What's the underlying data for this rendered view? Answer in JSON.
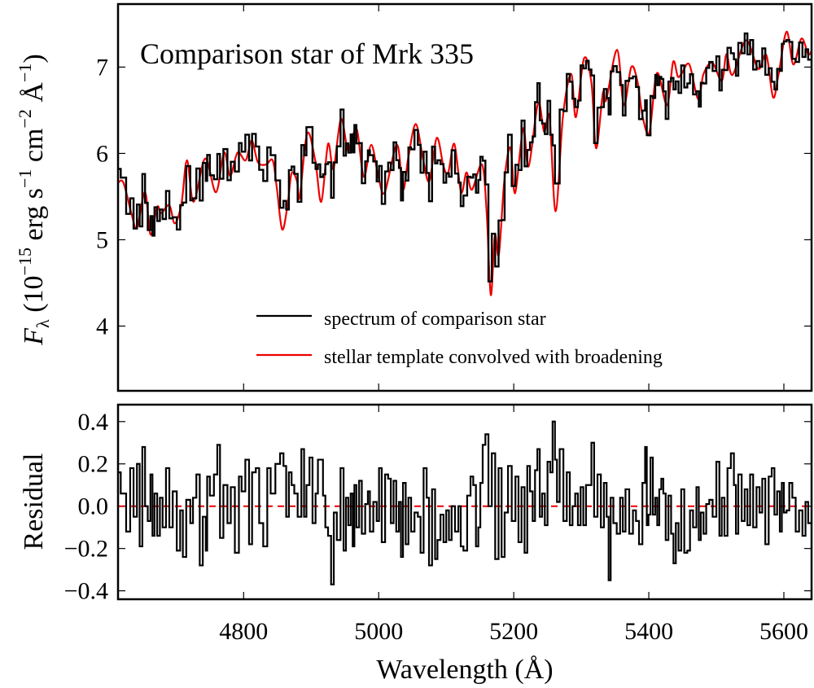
{
  "chart_data": [
    {
      "type": "line",
      "panel": "top",
      "title": "Comparison star of Mrk 335",
      "xlabel": "",
      "ylabel_parts": [
        "F",
        "λ",
        " (10",
        "−15",
        " erg s",
        "−1",
        " cm",
        "−2",
        " Å",
        "−1",
        ")"
      ],
      "xlim": [
        4614,
        5641
      ],
      "ylim": [
        3.25,
        7.73
      ],
      "x_ticks": [
        4800,
        5000,
        5200,
        5400,
        5600
      ],
      "y_ticks": [
        4,
        5,
        6,
        7
      ],
      "y_tick_labels": [
        "4",
        "5",
        "6",
        "7"
      ],
      "grid": false,
      "legend_position": "bottom-right",
      "series": [
        {
          "name": "spectrum of comparison star",
          "color": "#000000",
          "style": "step"
        },
        {
          "name": "stellar template convolved with broadening",
          "color": "#ee0000",
          "style": "smooth",
          "x": [
            4614,
            4622,
            4634,
            4642,
            4654,
            4662,
            4672,
            4678,
            4690,
            4698,
            4708,
            4716,
            4726,
            4743,
            4759,
            4771,
            4780,
            4791,
            4803,
            4812,
            4821,
            4833,
            4843,
            4849,
            4857,
            4865,
            4871,
            4879,
            4883,
            4894,
            4906,
            4915,
            4925,
            4933,
            4944,
            4954,
            4960,
            4968,
            4978,
            4989,
            5000,
            5009,
            5027,
            5036,
            5044,
            5055,
            5066,
            5075,
            5086,
            5096,
            5103,
            5112,
            5122,
            5130,
            5138,
            5153,
            5160,
            5166,
            5172,
            5178,
            5186,
            5195,
            5202,
            5214,
            5222,
            5236,
            5245,
            5253,
            5262,
            5273,
            5285,
            5292,
            5304,
            5315,
            5322,
            5332,
            5337,
            5353,
            5363,
            5374,
            5383,
            5391,
            5401,
            5412,
            5427,
            5436,
            5443,
            5449,
            5460,
            5473,
            5481,
            5494,
            5508,
            5515,
            5524,
            5544,
            5562,
            5574,
            5584,
            5592,
            5604,
            5614,
            5626,
            5636,
            5641
          ],
          "y": [
            5.66,
            5.66,
            5.3,
            5.14,
            5.55,
            5.06,
            5.38,
            5.31,
            5.4,
            5.19,
            5.42,
            5.92,
            5.44,
            5.94,
            5.55,
            6.01,
            5.74,
            6.01,
            5.92,
            6.15,
            5.9,
            5.87,
            5.92,
            5.61,
            5.12,
            5.4,
            5.77,
            5.68,
            5.49,
            6.23,
            5.92,
            5.44,
            6.11,
            5.82,
            6.4,
            6.04,
            6.16,
            6.27,
            5.73,
            6.1,
            5.71,
            5.55,
            6.1,
            5.58,
            5.96,
            6.34,
            5.92,
            5.68,
            6.18,
            5.85,
            5.78,
            6.11,
            5.55,
            5.78,
            5.58,
            5.87,
            5.3,
            4.36,
            5.05,
            4.83,
            5.68,
            6.07,
            5.54,
            6.29,
            5.85,
            6.58,
            6.25,
            6.42,
            5.33,
            6.44,
            6.92,
            6.42,
            7.1,
            6.82,
            6.06,
            6.7,
            6.62,
            7.2,
            6.56,
            7.0,
            6.84,
            6.42,
            6.25,
            6.93,
            6.56,
            7.06,
            6.89,
            6.93,
            7.03,
            6.63,
            6.92,
            7.05,
            6.84,
            7.15,
            6.91,
            7.31,
            6.98,
            7.14,
            6.65,
            6.91,
            7.41,
            7.03,
            7.33,
            7.15,
            7.19
          ]
        }
      ]
    },
    {
      "type": "line",
      "panel": "bottom",
      "xlabel": "Wavelength (Å)",
      "ylabel": "Residual",
      "xlim": [
        4614,
        5641
      ],
      "ylim": [
        -0.44,
        0.48
      ],
      "x_ticks": [
        4800,
        5000,
        5200,
        5400,
        5600
      ],
      "x_tick_labels": [
        "4800",
        "5000",
        "5200",
        "5400",
        "5600"
      ],
      "y_ticks": [
        -0.4,
        -0.2,
        0.0,
        0.2,
        0.4
      ],
      "y_tick_labels": [
        "−0.4",
        "−0.2",
        "0.0",
        "0.2",
        "0.4"
      ],
      "grid": false,
      "reference_line": {
        "y": 0.0,
        "color": "#ee0000",
        "style": "dashed"
      },
      "series": [
        {
          "color": "#000000",
          "style": "step",
          "x": [
            4614,
            4622,
            4630,
            4634,
            4640,
            4644,
            4648,
            4652,
            4656,
            4660,
            4664,
            4666,
            4670,
            4674,
            4678,
            4682,
            4688,
            4692,
            4698,
            4704,
            4708,
            4712,
            4718,
            4724,
            4726,
            4734,
            4736,
            4743,
            4745,
            4747,
            4753,
            4759,
            4763,
            4767,
            4773,
            4779,
            4783,
            4791,
            4795,
            4799,
            4806,
            4810,
            4815,
            4821,
            4825,
            4833,
            4837,
            4843,
            4851,
            4857,
            4861,
            4865,
            4869,
            4873,
            4877,
            4883,
            4888,
            4891,
            4895,
            4900,
            4904,
            4909,
            4911,
            4916,
            4919,
            4923,
            4927,
            4932,
            4935,
            4941,
            4946,
            4950,
            4953,
            4957,
            4960,
            4963,
            4965,
            4969,
            4973,
            4977,
            4983,
            4985,
            4989,
            4995,
            4999,
            5002,
            5007,
            5012,
            5016,
            5020,
            5024,
            5028,
            5032,
            5034,
            5038,
            5042,
            5046,
            5050,
            5056,
            5060,
            5064,
            5069,
            5073,
            5076,
            5082,
            5085,
            5089,
            5094,
            5098,
            5102,
            5106,
            5110,
            5116,
            5120,
            5123,
            5128,
            5134,
            5138,
            5142,
            5146,
            5149,
            5152,
            5156,
            5160,
            5165,
            5170,
            5175,
            5180,
            5184,
            5189,
            5194,
            5200,
            5205,
            5209,
            5214,
            5218,
            5222,
            5226,
            5230,
            5233,
            5237,
            5240,
            5244,
            5248,
            5252,
            5256,
            5259,
            5263,
            5265,
            5271,
            5276,
            5281,
            5285,
            5289,
            5293,
            5297,
            5301,
            5305,
            5309,
            5313,
            5317,
            5321,
            5327,
            5331,
            5336,
            5339,
            5342,
            5345,
            5350,
            5355,
            5360,
            5363,
            5368,
            5374,
            5379,
            5383,
            5388,
            5393,
            5396,
            5398,
            5401,
            5404,
            5408,
            5411,
            5414,
            5417,
            5420,
            5423,
            5427,
            5431,
            5435,
            5438,
            5442,
            5446,
            5450,
            5455,
            5459,
            5463,
            5468,
            5473,
            5475,
            5479,
            5483,
            5487,
            5492,
            5497,
            5503,
            5506,
            5510,
            5514,
            5519,
            5524,
            5528,
            5530,
            5535,
            5540,
            5544,
            5548,
            5552,
            5557,
            5562,
            5566,
            5570,
            5575,
            5580,
            5584,
            5588,
            5592,
            5596,
            5598,
            5602,
            5606,
            5610,
            5615,
            5620,
            5625,
            5630,
            5634,
            5638
          ],
          "y": [
            0.16,
            0.06,
            -0.12,
            0.18,
            -0.05,
            0.2,
            -0.19,
            0.28,
            0.0,
            -0.07,
            0.15,
            -0.14,
            0.06,
            -0.14,
            0.04,
            -0.1,
            0.18,
            -0.1,
            0.07,
            -0.21,
            -0.02,
            -0.24,
            0.03,
            -0.08,
            0.04,
            0.15,
            -0.28,
            -0.05,
            -0.21,
            0.14,
            0.05,
            0.15,
            0.29,
            -0.15,
            0.1,
            -0.08,
            0.09,
            -0.22,
            0.14,
            0.07,
            0.22,
            -0.18,
            0.16,
            0.18,
            -0.08,
            -0.19,
            0.18,
            0.06,
            0.2,
            0.25,
            0.19,
            -0.05,
            0.16,
            0.1,
            0.06,
            -0.05,
            0.27,
            -0.05,
            0.1,
            0.23,
            -0.08,
            0.06,
            0.22,
            0.22,
            0.05,
            -0.1,
            -0.14,
            -0.37,
            -0.03,
            -0.16,
            0.18,
            -0.21,
            0.04,
            -0.09,
            0.06,
            -0.19,
            0.1,
            -0.1,
            0.12,
            -0.13,
            0.01,
            0.07,
            -0.12,
            0.02,
            -0.07,
            0.18,
            -0.17,
            0.15,
            0.13,
            -0.08,
            0.12,
            -0.12,
            0.02,
            -0.24,
            0.11,
            -0.18,
            0.04,
            -0.12,
            -0.03,
            -0.05,
            -0.22,
            0.18,
            0.04,
            -0.28,
            0.08,
            -0.25,
            -0.16,
            -0.04,
            -0.17,
            -0.02,
            -0.16,
            0.0,
            -0.12,
            0.0,
            -0.19,
            -0.21,
            0.05,
            0.14,
            0.1,
            -0.19,
            -0.1,
            0.11,
            0.29,
            0.34,
            0.0,
            0.25,
            -0.25,
            0.18,
            -0.24,
            -0.03,
            0.19,
            -0.07,
            0.14,
            -0.17,
            0.09,
            -0.22,
            0.19,
            0.07,
            -0.07,
            0.17,
            0.27,
            -0.05,
            0.06,
            -0.09,
            0.21,
            0.16,
            0.4,
            0.22,
            0.02,
            0.27,
            -0.07,
            0.16,
            -0.09,
            0.0,
            0.06,
            -0.09,
            0.09,
            -0.09,
            0.1,
            0.1,
            0.3,
            -0.05,
            0.15,
            -0.1,
            0.11,
            -0.05,
            -0.35,
            0.04,
            -0.08,
            -0.13,
            0.04,
            -0.12,
            0.08,
            -0.13,
            -0.02,
            -0.07,
            -0.18,
            0.11,
            0.28,
            -0.09,
            -0.04,
            0.23,
            -0.04,
            0.04,
            -0.09,
            0.08,
            0.13,
            0.06,
            -0.16,
            0.05,
            -0.13,
            -0.27,
            -0.08,
            -0.21,
            0.08,
            -0.22,
            -0.21,
            -0.02,
            -0.1,
            0.09,
            -0.16,
            -0.03,
            -0.13,
            0.01,
            0.03,
            -0.05,
            0.21,
            -0.14,
            0.04,
            -0.14,
            0.18,
            0.25,
            0.1,
            -0.13,
            0.15,
            -0.07,
            0.08,
            -0.09,
            0.15,
            -0.1,
            0.09,
            -0.03,
            0.13,
            -0.18,
            0.14,
            0.18,
            -0.04,
            0.07,
            -0.12,
            0.11,
            -0.03,
            -0.02,
            0.11,
            0.04,
            -0.12,
            -0.02,
            -0.14,
            0.02,
            -0.08
          ]
        }
      ]
    }
  ]
}
